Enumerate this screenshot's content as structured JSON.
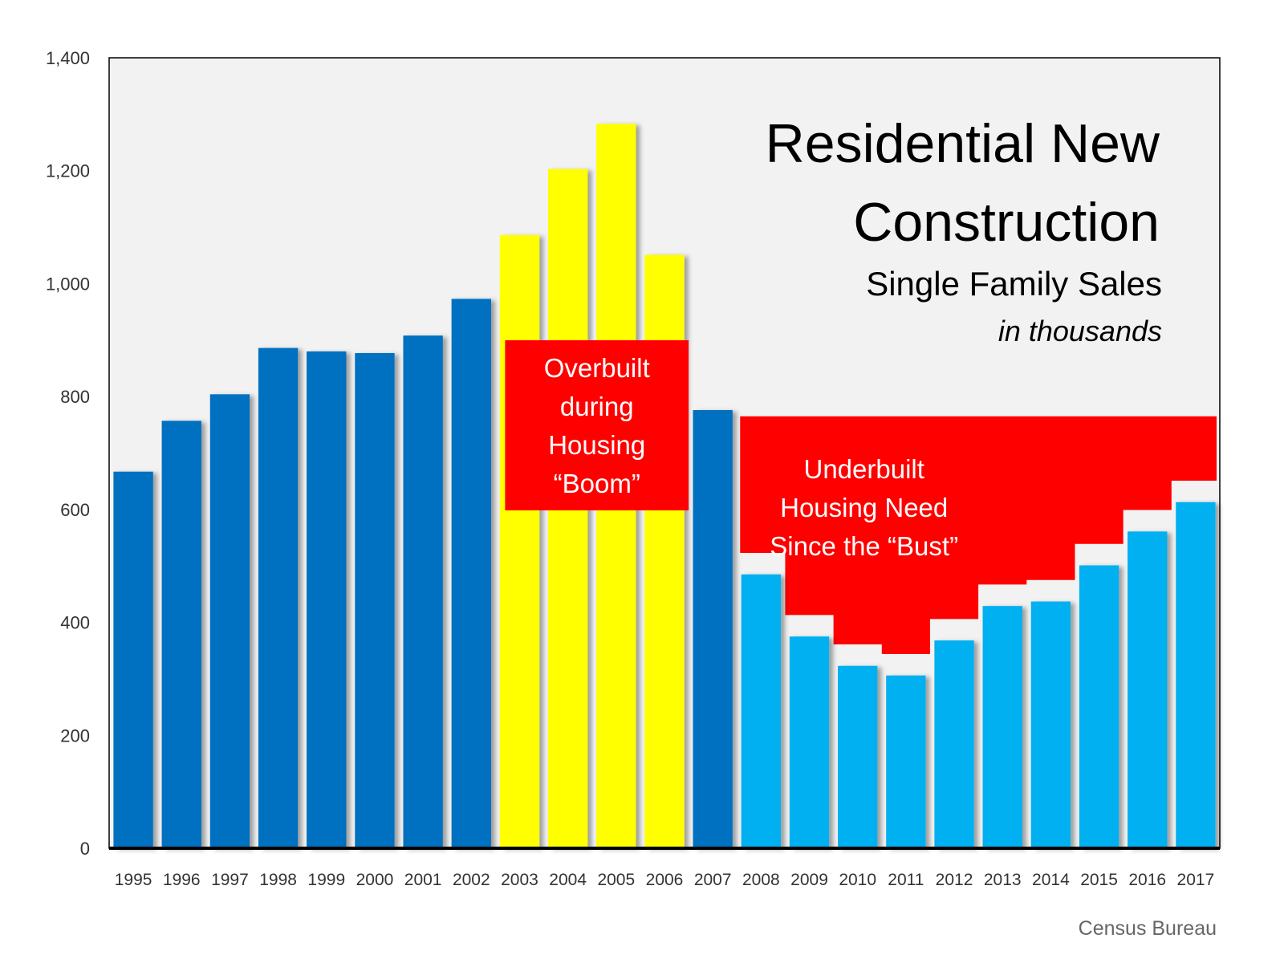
{
  "chart_data": {
    "type": "bar",
    "title": "Residential New",
    "title_line2": "Construction",
    "subtitle": "Single Family Sales",
    "units_note": "in thousands",
    "source": "Census Bureau",
    "xlabel": "",
    "ylabel": "",
    "ylim": [
      0,
      1400
    ],
    "yticks": [
      "0",
      "200",
      "400",
      "600",
      "800",
      "1,000",
      "1,200",
      "1,400"
    ],
    "grid": false,
    "categories": [
      "1995",
      "1996",
      "1997",
      "1998",
      "1999",
      "2000",
      "2001",
      "2002",
      "2003",
      "2004",
      "2005",
      "2006",
      "2007",
      "2008",
      "2009",
      "2010",
      "2011",
      "2012",
      "2013",
      "2014",
      "2015",
      "2016",
      "2017"
    ],
    "values": [
      667,
      757,
      804,
      886,
      880,
      877,
      908,
      973,
      1086,
      1203,
      1283,
      1051,
      776,
      485,
      375,
      323,
      306,
      368,
      429,
      437,
      501,
      561,
      613
    ],
    "bar_groups": [
      "normal",
      "normal",
      "normal",
      "normal",
      "normal",
      "normal",
      "normal",
      "normal",
      "boom",
      "boom",
      "boom",
      "boom",
      "normal",
      "bust",
      "bust",
      "bust",
      "bust",
      "bust",
      "bust",
      "bust",
      "bust",
      "bust",
      "bust"
    ],
    "colors": {
      "normal": "#0070C0",
      "boom": "#FFFF00",
      "bust": "#00B0F0",
      "annotation": "#FF0000",
      "plot_bg": "#F2F2F2",
      "axis": "#000000"
    },
    "annotations": {
      "overbuilt": [
        "Overbuilt",
        "during",
        "Housing",
        "“Boom”"
      ],
      "underbuilt": [
        "Underbuilt",
        "Housing Need",
        "Since the “Bust”"
      ],
      "underbuilt_baseline": 765
    }
  }
}
